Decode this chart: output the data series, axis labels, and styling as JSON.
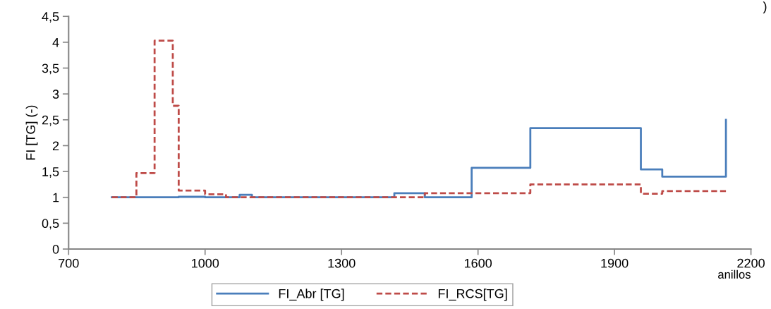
{
  "chart_data": {
    "type": "step",
    "ylabel": "FI [TG] (-)",
    "xlabel": "anillos",
    "series": [
      {
        "name": "FI_Abr [TG]",
        "color": "#4a7ebb",
        "line_style": "solid",
        "x": [
          795,
          942,
          1000,
          1076,
          1103,
          1416,
          1483,
          1586,
          1715,
          1958,
          2005,
          2145,
          2145
        ],
        "values": [
          1.0,
          1.01,
          1.0,
          1.05,
          1.0,
          1.08,
          1.0,
          1.57,
          2.34,
          1.54,
          1.4,
          1.4,
          2.5
        ]
      },
      {
        "name": "FI_RCS[TG]",
        "color": "#be4b48",
        "line_style": "dashed",
        "x": [
          795,
          849,
          889,
          929,
          942,
          1000,
          1046,
          1483,
          1715,
          1958,
          2005,
          2145
        ],
        "values": [
          1.0,
          1.47,
          4.03,
          2.77,
          1.13,
          1.06,
          1.0,
          1.08,
          1.25,
          1.07,
          1.12,
          1.12
        ]
      }
    ],
    "xlim": [
      700,
      2200
    ],
    "xticks": [
      700,
      1000,
      1300,
      1600,
      1900,
      2200
    ],
    "ylim": [
      0,
      4.5
    ],
    "yticks": [
      0,
      {
        "value": 0.5,
        "label": "0,5"
      },
      1,
      {
        "value": 1.5,
        "label": "1,5"
      },
      2,
      {
        "value": 2.5,
        "label": "2,5"
      },
      3,
      {
        "value": 3.5,
        "label": "3,5"
      },
      4,
      {
        "value": 4.5,
        "label": "4,5"
      }
    ],
    "grid": false,
    "legend": "bottom",
    "marker": "none",
    "annotations": [
      ")"
    ]
  }
}
